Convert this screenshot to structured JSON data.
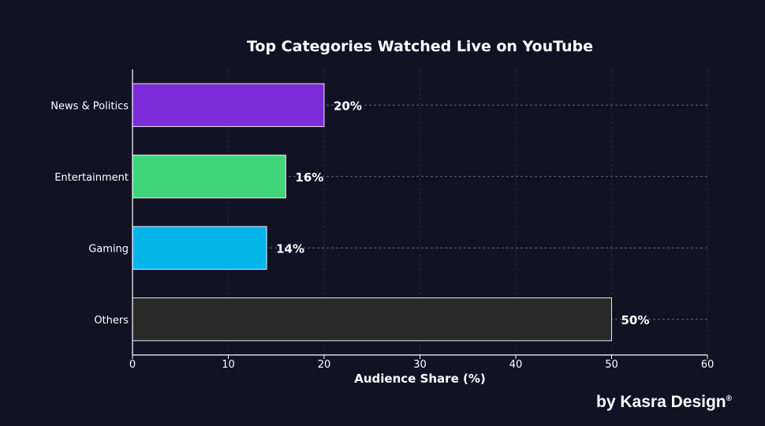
{
  "chart_data": {
    "type": "bar",
    "orientation": "horizontal",
    "title": "Top Categories Watched Live on YouTube",
    "xlabel": "Audience Share (%)",
    "ylabel": "",
    "categories": [
      "News & Politics",
      "Entertainment",
      "Gaming",
      "Others"
    ],
    "values": [
      20,
      16,
      14,
      50
    ],
    "value_labels": [
      "20%",
      "16%",
      "14%",
      "50%"
    ],
    "colors": [
      "#7b2bd9",
      "#3fd679",
      "#03b6ea",
      "#2a2a2a"
    ],
    "xlim": [
      0,
      60
    ],
    "xticks": [
      0,
      10,
      20,
      30,
      40,
      50,
      60
    ],
    "grid": true
  },
  "credit": {
    "text": "by Kasra Design",
    "mark": "®"
  }
}
